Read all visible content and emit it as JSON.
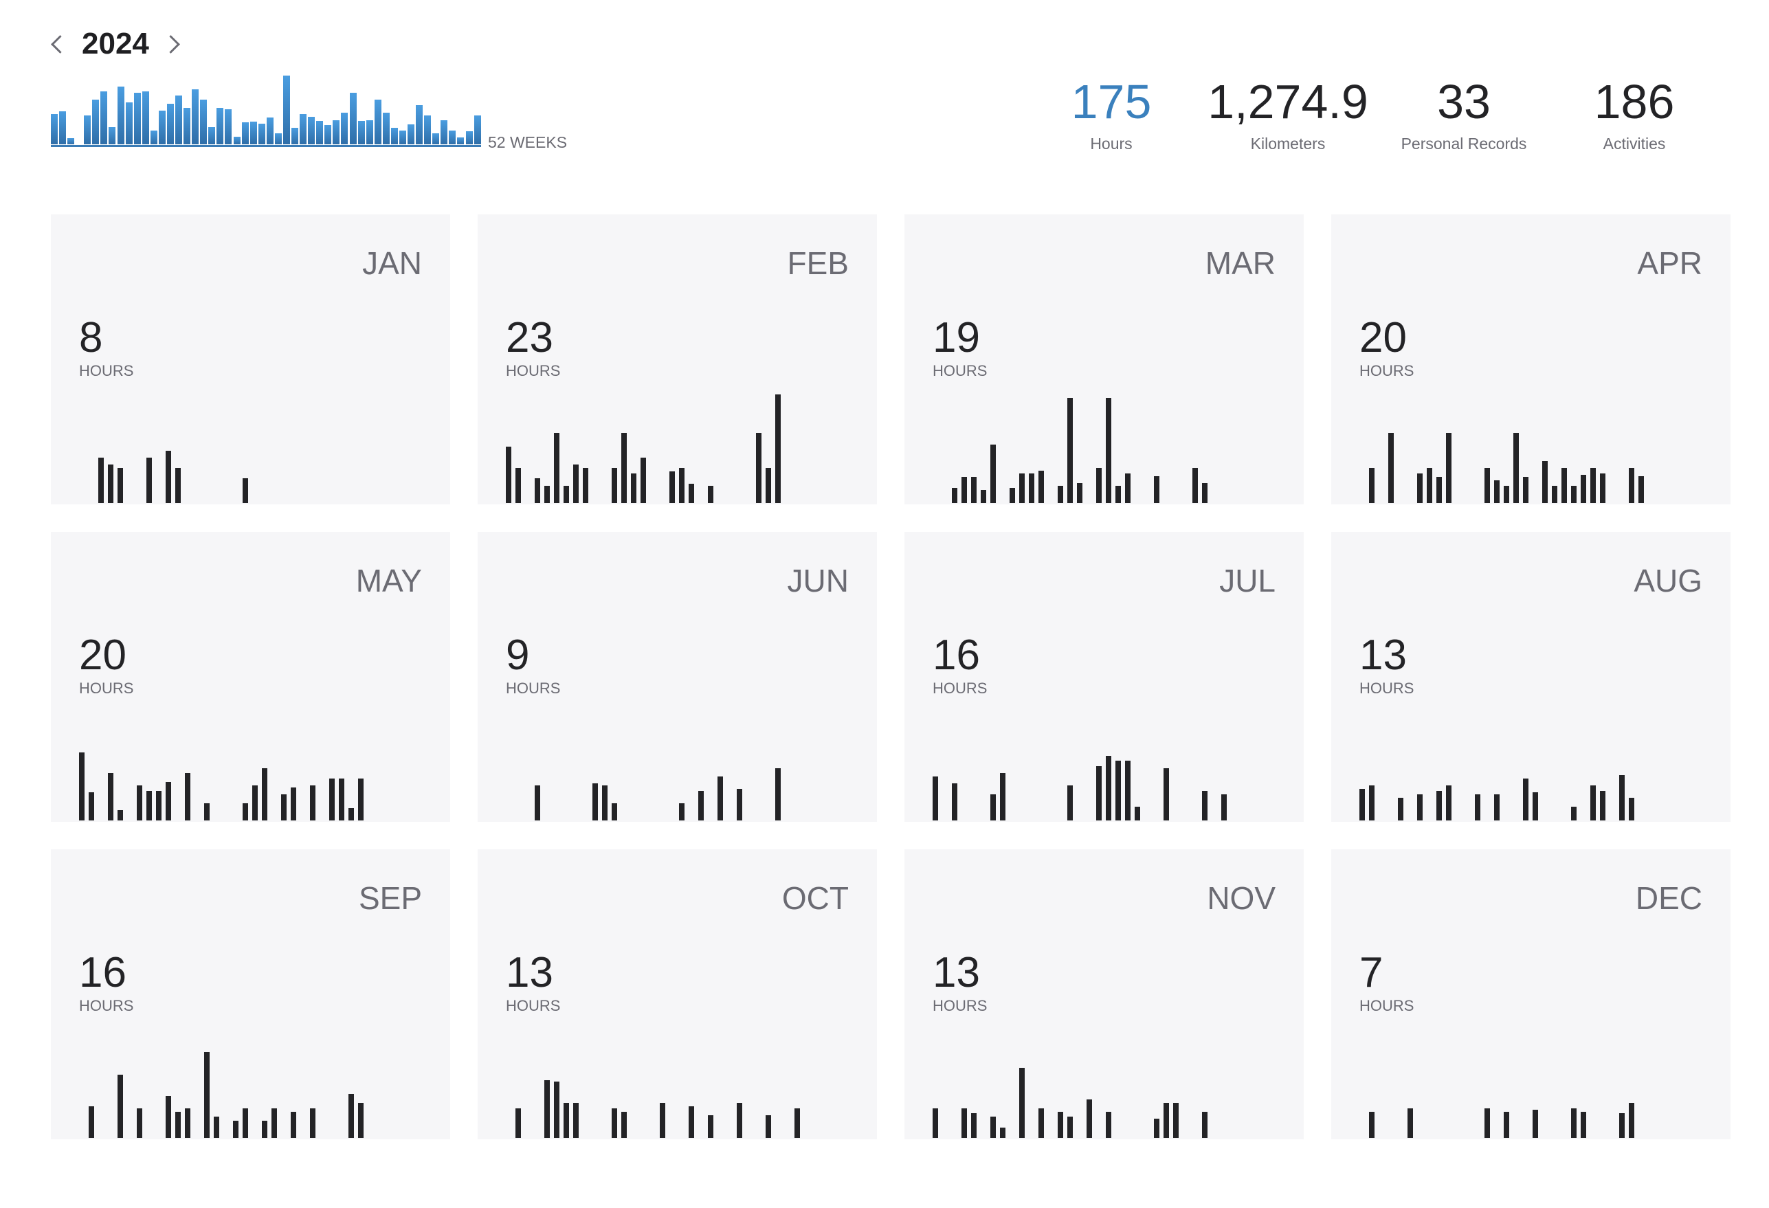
{
  "nav": {
    "year": "2024",
    "prev_icon": "chevron-left-icon",
    "next_icon": "chevron-right-icon"
  },
  "weekly": {
    "label": "52 WEEKS",
    "unit": "hours",
    "color_top": "#4a9de0",
    "color_bottom": "#2f6ea8",
    "values": [
      3.5,
      3.8,
      0.7,
      0,
      3.3,
      5.1,
      6.1,
      2.0,
      6.6,
      4.8,
      5.9,
      6.1,
      1.6,
      3.9,
      4.7,
      5.6,
      4.2,
      6.3,
      5.1,
      2.0,
      4.2,
      4.0,
      0.9,
      2.5,
      2.6,
      2.4,
      3.1,
      1.3,
      7.9,
      1.9,
      3.5,
      3.2,
      2.7,
      2.2,
      2.8,
      3.6,
      5.9,
      2.7,
      2.8,
      5.1,
      3.6,
      1.9,
      1.6,
      2.3,
      4.5,
      3.3,
      1.3,
      2.8,
      1.6,
      0.8,
      1.5,
      3.3
    ]
  },
  "stats": [
    {
      "value": "175",
      "label": "Hours",
      "accent": "#3a80bd"
    },
    {
      "value": "1,274.9",
      "label": "Kilometers"
    },
    {
      "value": "33",
      "label": "Personal Records"
    },
    {
      "value": "186",
      "label": "Activities"
    }
  ],
  "months": [
    {
      "name": "JAN",
      "hours": "8",
      "unit": "HOURS",
      "days": [
        [
          3,
          1.3
        ],
        [
          4,
          1.1
        ],
        [
          5,
          1.0
        ],
        [
          8,
          1.3
        ],
        [
          10,
          1.5
        ],
        [
          11,
          1.0
        ],
        [
          18,
          0.7
        ]
      ]
    },
    {
      "name": "FEB",
      "hours": "23",
      "unit": "HOURS",
      "days": [
        [
          1,
          1.6
        ],
        [
          2,
          1.0
        ],
        [
          4,
          0.7
        ],
        [
          5,
          0.5
        ],
        [
          6,
          2.0
        ],
        [
          7,
          0.5
        ],
        [
          8,
          1.1
        ],
        [
          9,
          1.0
        ],
        [
          12,
          1.0
        ],
        [
          13,
          2.0
        ],
        [
          14,
          0.85
        ],
        [
          15,
          1.3
        ],
        [
          18,
          0.9
        ],
        [
          19,
          1.0
        ],
        [
          20,
          0.55
        ],
        [
          22,
          0.5
        ],
        [
          27,
          2.0
        ],
        [
          28,
          1.0
        ],
        [
          29,
          3.1
        ]
      ]
    },
    {
      "name": "MAR",
      "hours": "19",
      "unit": "HOURS",
      "days": [
        [
          3,
          0.44
        ],
        [
          4,
          0.75
        ],
        [
          5,
          0.75
        ],
        [
          6,
          0.38
        ],
        [
          7,
          1.67
        ],
        [
          9,
          0.44
        ],
        [
          10,
          0.85
        ],
        [
          11,
          0.85
        ],
        [
          12,
          0.92
        ],
        [
          14,
          0.5
        ],
        [
          15,
          3.0
        ],
        [
          16,
          0.56
        ],
        [
          18,
          1.0
        ],
        [
          19,
          3.0
        ],
        [
          20,
          0.5
        ],
        [
          21,
          0.85
        ],
        [
          24,
          0.77
        ],
        [
          28,
          1.0
        ],
        [
          29,
          0.56
        ]
      ]
    },
    {
      "name": "APR",
      "hours": "20",
      "unit": "HOURS",
      "days": [
        [
          2,
          1.0
        ],
        [
          4,
          2.0
        ],
        [
          7,
          0.85
        ],
        [
          8,
          1.0
        ],
        [
          9,
          0.75
        ],
        [
          10,
          2.0
        ],
        [
          14,
          1.0
        ],
        [
          15,
          0.65
        ],
        [
          16,
          0.5
        ],
        [
          17,
          2.0
        ],
        [
          18,
          0.75
        ],
        [
          20,
          1.2
        ],
        [
          21,
          0.5
        ],
        [
          22,
          1.0
        ],
        [
          23,
          0.5
        ],
        [
          24,
          0.8
        ],
        [
          25,
          1.0
        ],
        [
          26,
          0.85
        ],
        [
          29,
          1.0
        ],
        [
          30,
          0.77
        ]
      ]
    },
    {
      "name": "MAY",
      "hours": "20",
      "unit": "HOURS",
      "days": [
        [
          1,
          1.95
        ],
        [
          2,
          0.8
        ],
        [
          4,
          1.35
        ],
        [
          5,
          0.3
        ],
        [
          7,
          1.0
        ],
        [
          8,
          0.85
        ],
        [
          9,
          0.85
        ],
        [
          10,
          1.1
        ],
        [
          12,
          1.35
        ],
        [
          14,
          0.5
        ],
        [
          18,
          0.5
        ],
        [
          19,
          1.0
        ],
        [
          20,
          1.5
        ],
        [
          22,
          0.75
        ],
        [
          23,
          0.95
        ],
        [
          25,
          1.0
        ],
        [
          27,
          1.2
        ],
        [
          28,
          1.2
        ],
        [
          29,
          0.35
        ],
        [
          30,
          1.2
        ]
      ]
    },
    {
      "name": "JUN",
      "hours": "9",
      "unit": "HOURS",
      "days": [
        [
          4,
          1.0
        ],
        [
          10,
          1.05
        ],
        [
          11,
          1.0
        ],
        [
          12,
          0.5
        ],
        [
          19,
          0.5
        ],
        [
          21,
          0.85
        ],
        [
          23,
          1.25
        ],
        [
          25,
          0.9
        ],
        [
          29,
          1.5
        ]
      ]
    },
    {
      "name": "JUL",
      "hours": "16",
      "unit": "HOURS",
      "days": [
        [
          1,
          1.25
        ],
        [
          3,
          1.05
        ],
        [
          7,
          0.75
        ],
        [
          8,
          1.35
        ],
        [
          15,
          1.0
        ],
        [
          18,
          1.55
        ],
        [
          19,
          1.85
        ],
        [
          20,
          1.7
        ],
        [
          21,
          1.7
        ],
        [
          22,
          0.4
        ],
        [
          25,
          1.5
        ],
        [
          29,
          0.85
        ],
        [
          31,
          0.75
        ]
      ]
    },
    {
      "name": "AUG",
      "hours": "13",
      "unit": "HOURS",
      "days": [
        [
          1,
          0.9
        ],
        [
          2,
          1.0
        ],
        [
          5,
          0.65
        ],
        [
          7,
          0.75
        ],
        [
          9,
          0.85
        ],
        [
          10,
          1.0
        ],
        [
          13,
          0.75
        ],
        [
          15,
          0.75
        ],
        [
          18,
          1.2
        ],
        [
          19,
          0.8
        ],
        [
          23,
          0.4
        ],
        [
          25,
          1.0
        ],
        [
          26,
          0.85
        ],
        [
          28,
          1.3
        ],
        [
          29,
          0.65
        ]
      ]
    },
    {
      "name": "SEP",
      "hours": "16",
      "unit": "HOURS",
      "days": [
        [
          2,
          0.9
        ],
        [
          5,
          1.8
        ],
        [
          7,
          0.85
        ],
        [
          10,
          1.2
        ],
        [
          11,
          0.75
        ],
        [
          12,
          0.85
        ],
        [
          14,
          2.45
        ],
        [
          15,
          0.6
        ],
        [
          17,
          0.5
        ],
        [
          18,
          0.85
        ],
        [
          20,
          0.5
        ],
        [
          21,
          0.85
        ],
        [
          23,
          0.75
        ],
        [
          25,
          0.85
        ],
        [
          29,
          1.25
        ],
        [
          30,
          1.0
        ]
      ]
    },
    {
      "name": "OCT",
      "hours": "13",
      "unit": "HOURS",
      "days": [
        [
          2,
          0.85
        ],
        [
          5,
          1.65
        ],
        [
          6,
          1.6
        ],
        [
          7,
          1.0
        ],
        [
          8,
          1.0
        ],
        [
          12,
          0.85
        ],
        [
          13,
          0.75
        ],
        [
          17,
          1.0
        ],
        [
          20,
          0.9
        ],
        [
          22,
          0.65
        ],
        [
          25,
          1.0
        ],
        [
          28,
          0.65
        ],
        [
          31,
          0.85
        ]
      ]
    },
    {
      "name": "NOV",
      "hours": "13",
      "unit": "HOURS",
      "days": [
        [
          1,
          0.85
        ],
        [
          4,
          0.85
        ],
        [
          5,
          0.7
        ],
        [
          7,
          0.6
        ],
        [
          8,
          0.3
        ],
        [
          10,
          2.0
        ],
        [
          12,
          0.85
        ],
        [
          14,
          0.75
        ],
        [
          15,
          0.6
        ],
        [
          17,
          1.1
        ],
        [
          19,
          0.75
        ],
        [
          24,
          0.55
        ],
        [
          25,
          1.0
        ],
        [
          26,
          1.0
        ],
        [
          29,
          0.75
        ]
      ]
    },
    {
      "name": "DEC",
      "hours": "7",
      "unit": "HOURS",
      "days": [
        [
          2,
          0.75
        ],
        [
          6,
          0.85
        ],
        [
          14,
          0.85
        ],
        [
          16,
          0.75
        ],
        [
          19,
          0.8
        ],
        [
          23,
          0.85
        ],
        [
          24,
          0.75
        ],
        [
          28,
          0.7
        ],
        [
          29,
          1.0
        ]
      ]
    }
  ]
}
